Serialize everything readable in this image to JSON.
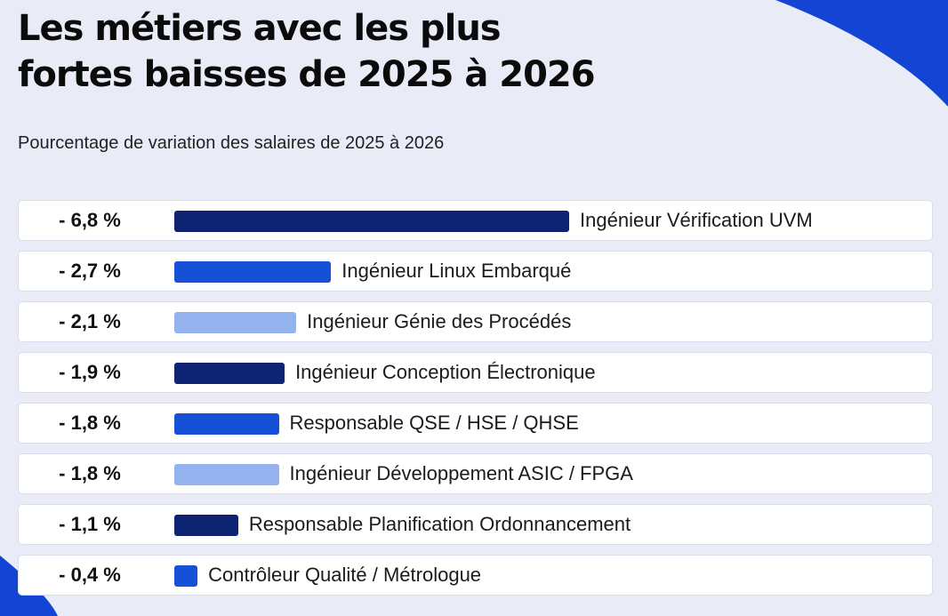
{
  "title": {
    "line1": "Les métiers avec les plus",
    "line2": "fortes baisses de 2025 à 2026"
  },
  "subtitle": "Pourcentage de variation des salaires de 2025 à 2026",
  "colors": {
    "dark_navy": "#0f2373",
    "royal_blue": "#1550d6",
    "light_blue": "#93b2ee",
    "background": "#e9ecf6",
    "deco_blue": "#1344d4"
  },
  "chart_data": {
    "type": "bar",
    "orientation": "horizontal",
    "categories": [
      "Ingénieur Vérification UVM",
      "Ingénieur Linux Embarqué",
      "Ingénieur Génie des Procédés",
      "Ingénieur Conception Électronique",
      "Responsable QSE / HSE / QHSE",
      "Ingénieur Développement ASIC / FPGA",
      "Responsable Planification Ordonnancement",
      "Contrôleur Qualité / Métrologue"
    ],
    "values": [
      -6.8,
      -2.7,
      -2.1,
      -1.9,
      -1.8,
      -1.8,
      -1.1,
      -0.4
    ],
    "value_labels": [
      "- 6,8 %",
      "- 2,7 %",
      "- 2,1 %",
      "- 1,9 %",
      "- 1,8 %",
      "- 1,8 %",
      "- 1,1 %",
      "- 0,4 %"
    ],
    "bar_colors": [
      "#0f2373",
      "#1550d6",
      "#93b2ee",
      "#0f2373",
      "#1550d6",
      "#93b2ee",
      "#0f2373",
      "#1550d6"
    ]
  }
}
